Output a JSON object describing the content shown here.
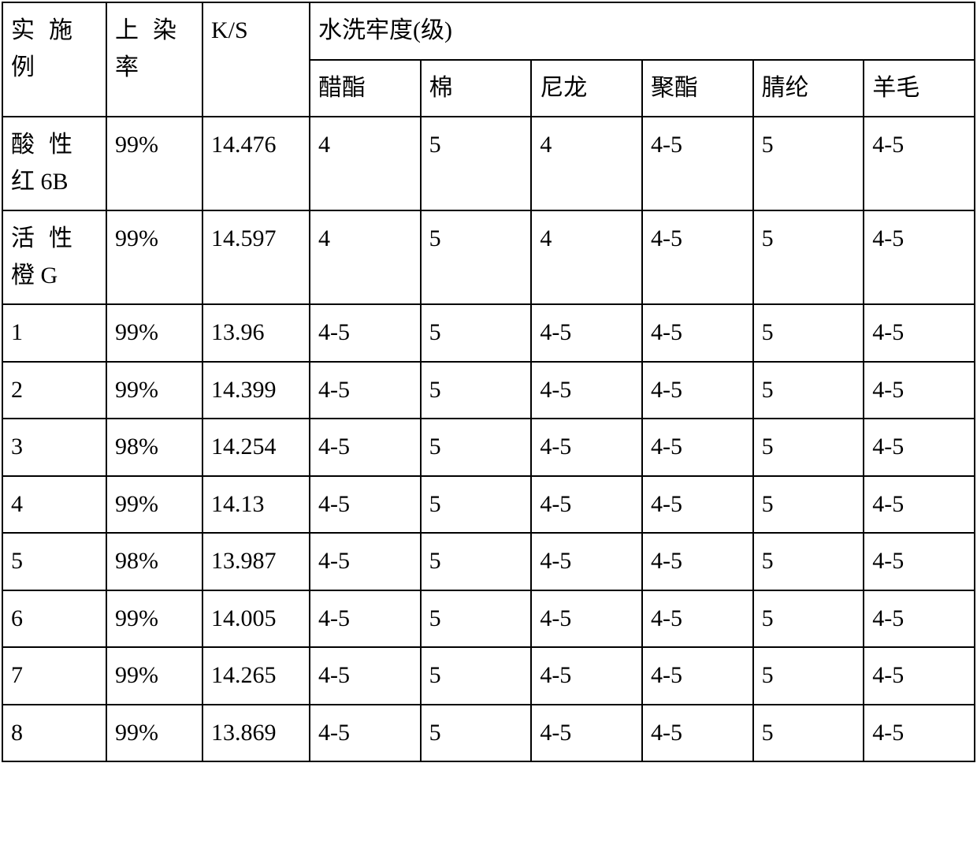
{
  "colors": {
    "background": "#ffffff",
    "text": "#000000",
    "border": "#000000"
  },
  "header": {
    "col0_line1": "实施",
    "col0_line2": "例",
    "col1_line1": "上染",
    "col1_line2": "率",
    "col2": "K/S",
    "col3_title": "水洗牢度(级)",
    "sub": {
      "c0": "醋酯",
      "c1": "棉",
      "c2": "尼龙",
      "c3": "聚酯",
      "c4": "腈纶",
      "c5": "羊毛"
    }
  },
  "rows": {
    "r0": {
      "label_line1": "酸性",
      "label_line2": "红 6B",
      "uptake": "99%",
      "ks": "14.476",
      "w0": "4",
      "w1": "5",
      "w2": "4",
      "w3": "4-5",
      "w4": "5",
      "w5": "4-5"
    },
    "r1": {
      "label_line1": "活性",
      "label_line2": "橙 G",
      "uptake": "99%",
      "ks": "14.597",
      "w0": "4",
      "w1": "5",
      "w2": "4",
      "w3": "4-5",
      "w4": "5",
      "w5": "4-5"
    },
    "r2": {
      "label": "1",
      "uptake": "99%",
      "ks": "13.96",
      "w0": "4-5",
      "w1": "5",
      "w2": "4-5",
      "w3": "4-5",
      "w4": "5",
      "w5": "4-5"
    },
    "r3": {
      "label": "2",
      "uptake": "99%",
      "ks": "14.399",
      "w0": "4-5",
      "w1": "5",
      "w2": "4-5",
      "w3": "4-5",
      "w4": "5",
      "w5": "4-5"
    },
    "r4": {
      "label": "3",
      "uptake": "98%",
      "ks": "14.254",
      "w0": "4-5",
      "w1": "5",
      "w2": "4-5",
      "w3": "4-5",
      "w4": "5",
      "w5": "4-5"
    },
    "r5": {
      "label": "4",
      "uptake": "99%",
      "ks": "14.13",
      "w0": "4-5",
      "w1": "5",
      "w2": "4-5",
      "w3": "4-5",
      "w4": "5",
      "w5": "4-5"
    },
    "r6": {
      "label": "5",
      "uptake": "98%",
      "ks": "13.987",
      "w0": "4-5",
      "w1": "5",
      "w2": "4-5",
      "w3": "4-5",
      "w4": "5",
      "w5": "4-5"
    },
    "r7": {
      "label": "6",
      "uptake": "99%",
      "ks": "14.005",
      "w0": "4-5",
      "w1": "5",
      "w2": "4-5",
      "w3": "4-5",
      "w4": "5",
      "w5": "4-5"
    },
    "r8": {
      "label": "7",
      "uptake": "99%",
      "ks": "14.265",
      "w0": "4-5",
      "w1": "5",
      "w2": "4-5",
      "w3": "4-5",
      "w4": "5",
      "w5": "4-5"
    },
    "r9": {
      "label": "8",
      "uptake": "99%",
      "ks": "13.869",
      "w0": "4-5",
      "w1": "5",
      "w2": "4-5",
      "w3": "4-5",
      "w4": "5",
      "w5": "4-5"
    }
  }
}
